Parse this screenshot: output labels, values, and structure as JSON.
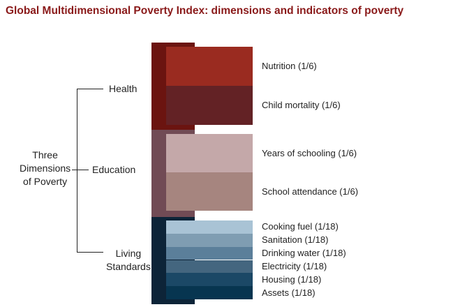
{
  "title": "Global Multidimensional Poverty Index: dimensions and indicators of poverty",
  "root": {
    "lines": [
      "Three",
      "Dimensions",
      "of Poverty"
    ]
  },
  "dimensions": [
    {
      "label": "Health",
      "color": "#6b1410",
      "indicators": [
        {
          "label": "Nutrition (1/6)",
          "color": "#9a2b20"
        },
        {
          "label": "Child mortality (1/6)",
          "color": "#632225"
        }
      ]
    },
    {
      "label": "Education",
      "color": "#714b55",
      "indicators": [
        {
          "label": "Years of schooling (1/6)",
          "color": "#c4a8a9"
        },
        {
          "label": "School attendance (1/6)",
          "color": "#a6857f"
        }
      ]
    },
    {
      "label_lines": [
        "Living",
        "Standards"
      ],
      "color": "#0d2438",
      "indicators": [
        {
          "label": "Cooking fuel (1/18)",
          "color": "#a9c3d5"
        },
        {
          "label": "Sanitation (1/18)",
          "color": "#7f9db2"
        },
        {
          "label": "Drinking water (1/18)",
          "color": "#5b7f9a"
        },
        {
          "label": "Electricity (1/18)",
          "color": "#44667f"
        },
        {
          "label": "Housing (1/18)",
          "color": "#1b4866"
        },
        {
          "label": "Assets (1/18)",
          "color": "#073550"
        }
      ]
    }
  ]
}
